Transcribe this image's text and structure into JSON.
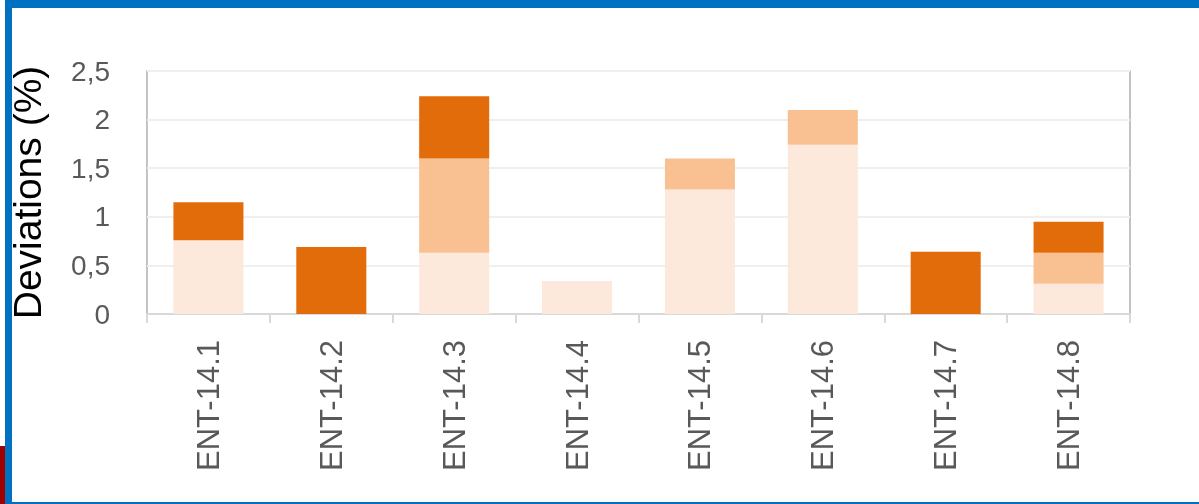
{
  "chart_data": {
    "type": "bar",
    "ylabel": "Deviations (%)",
    "categories": [
      "ENT-14.1",
      "ENT-14.2",
      "ENT-14.3",
      "ENT-14.4",
      "ENT-14.5",
      "ENT-14.6",
      "ENT-14.7",
      "ENT-14.8"
    ],
    "series": [
      {
        "color": "#fce9db",
        "values": [
          0.76,
          null,
          0.63,
          0.34,
          1.28,
          1.74,
          null,
          0.31
        ]
      },
      {
        "color": "#f9c091",
        "values": [
          null,
          null,
          0.97,
          null,
          0.32,
          0.36,
          null,
          0.32
        ]
      },
      {
        "color": "#e36c0a",
        "values": [
          0.39,
          0.69,
          0.64,
          null,
          null,
          null,
          0.64,
          0.32
        ]
      }
    ],
    "stacked": true,
    "ylim": [
      0,
      2.5
    ],
    "yticks": [
      0,
      {
        "value": 0.5,
        "label": "0,5"
      },
      1,
      {
        "value": 1.5,
        "label": "1,5"
      },
      2,
      {
        "value": 2.5,
        "label": "2,5"
      }
    ],
    "grid": "y"
  }
}
